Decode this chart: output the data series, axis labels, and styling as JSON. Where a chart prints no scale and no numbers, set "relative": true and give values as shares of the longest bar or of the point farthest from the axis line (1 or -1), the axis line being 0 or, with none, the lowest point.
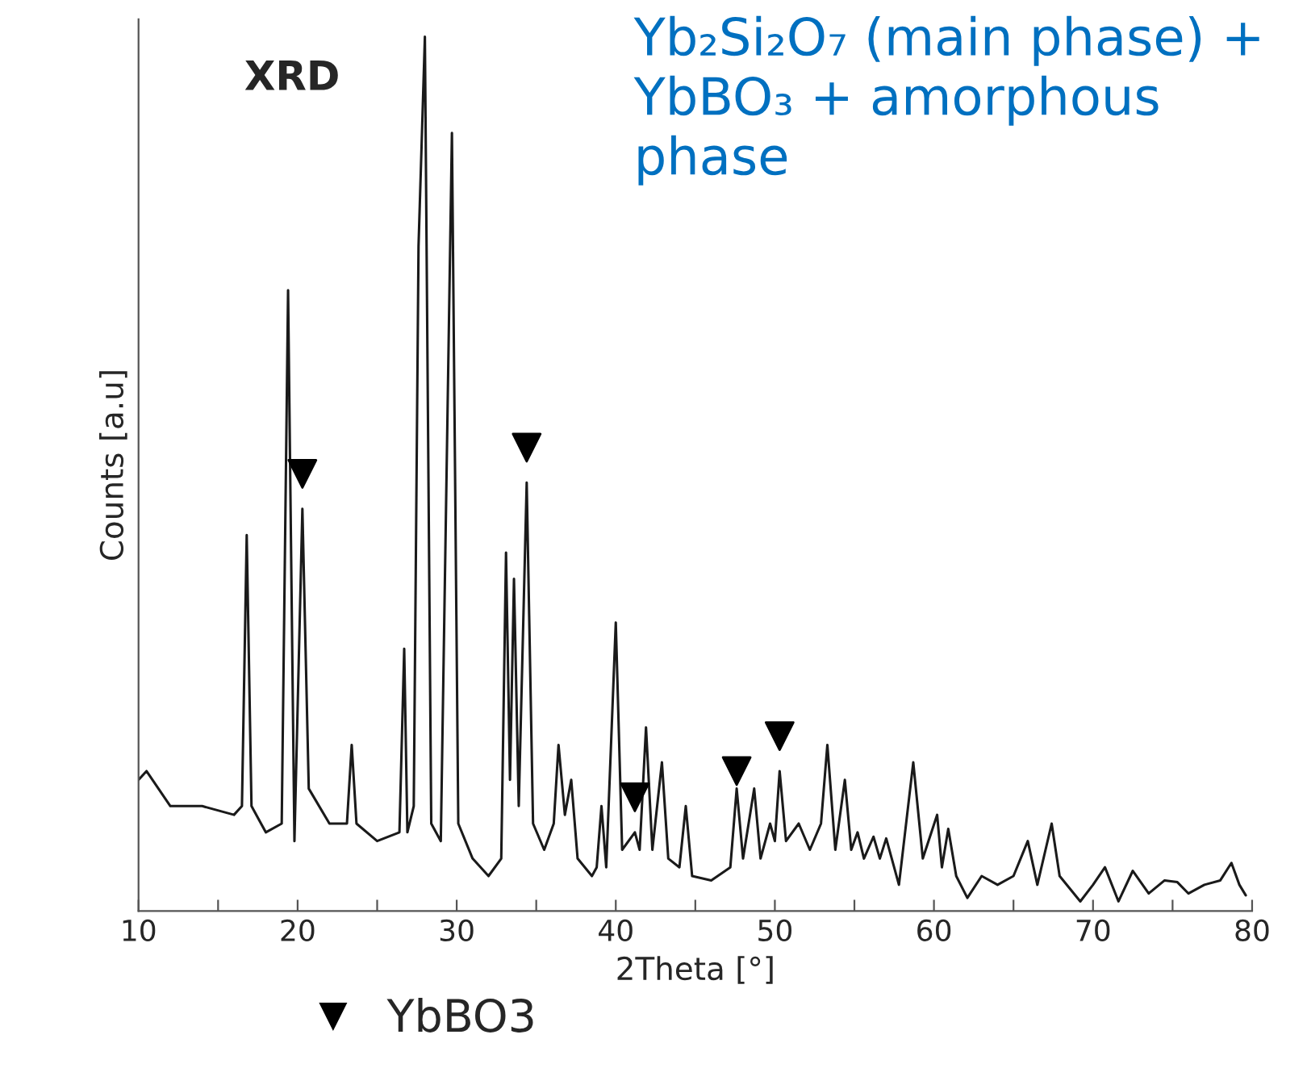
{
  "chart_data": {
    "type": "line",
    "relative": true,
    "xlabel": "2Theta [°]",
    "ylabel": "Counts [a.u]",
    "annotations": [
      "XRD",
      "Yb₂Si₂O₇ (main phase) + YbBO₃ + amorphous phase"
    ],
    "xlim": [
      10,
      80
    ],
    "xticks": [
      10,
      {
        "value": 15,
        "label": null
      },
      20,
      {
        "value": 25,
        "label": null
      },
      30,
      {
        "value": 35,
        "label": null
      },
      40,
      {
        "value": 45,
        "label": null
      },
      50,
      {
        "value": 55,
        "label": null
      },
      60,
      {
        "value": 65,
        "label": null
      },
      70,
      {
        "value": 75,
        "label": null
      },
      80
    ],
    "legend": "bottom left",
    "series": [
      {
        "color": "#1a1a1a",
        "marker": "none",
        "line_style": "solid",
        "x": [
          10.0,
          10.5,
          12,
          14,
          16,
          16.5,
          16.8,
          17.1,
          18,
          19.0,
          19.4,
          19.8,
          20.3,
          20.7,
          22,
          23.1,
          23.4,
          23.7,
          25,
          26.4,
          26.7,
          26.9,
          27.3,
          27.6,
          28.0,
          28.4,
          29.0,
          29.7,
          30.1,
          31,
          32,
          32.8,
          33.1,
          33.35,
          33.6,
          33.9,
          34.4,
          34.8,
          35.5,
          36.1,
          36.4,
          36.8,
          37.2,
          37.6,
          38.5,
          38.8,
          39.1,
          39.4,
          40.0,
          40.4,
          41.2,
          41.5,
          41.9,
          42.3,
          42.9,
          43.3,
          44.0,
          44.4,
          44.8,
          46.0,
          47.2,
          47.6,
          48.0,
          48.7,
          49.1,
          49.7,
          50.0,
          50.3,
          50.7,
          51.5,
          52.2,
          52.9,
          53.3,
          53.8,
          54.4,
          54.8,
          55.2,
          55.6,
          56.2,
          56.6,
          57.0,
          57.8,
          58.7,
          59.3,
          60.2,
          60.5,
          60.9,
          61.4,
          62.1,
          63,
          64,
          65.0,
          65.9,
          66.5,
          67.4,
          67.9,
          69.2,
          70,
          70.75,
          71.6,
          72.5,
          73.5,
          74.5,
          75.3,
          76,
          77,
          78,
          78.7,
          79.2,
          79.6
        ],
        "values": [
          0.15,
          0.16,
          0.12,
          0.12,
          0.11,
          0.12,
          0.43,
          0.12,
          0.09,
          0.1,
          0.71,
          0.08,
          0.46,
          0.14,
          0.1,
          0.1,
          0.19,
          0.1,
          0.08,
          0.09,
          0.3,
          0.09,
          0.12,
          0.76,
          1.0,
          0.1,
          0.08,
          0.89,
          0.1,
          0.06,
          0.04,
          0.06,
          0.41,
          0.15,
          0.38,
          0.12,
          0.49,
          0.1,
          0.07,
          0.1,
          0.19,
          0.11,
          0.15,
          0.06,
          0.04,
          0.05,
          0.12,
          0.05,
          0.33,
          0.07,
          0.09,
          0.07,
          0.21,
          0.07,
          0.17,
          0.06,
          0.05,
          0.12,
          0.04,
          0.035,
          0.05,
          0.14,
          0.06,
          0.14,
          0.06,
          0.1,
          0.08,
          0.16,
          0.08,
          0.1,
          0.07,
          0.1,
          0.19,
          0.07,
          0.15,
          0.07,
          0.09,
          0.06,
          0.085,
          0.06,
          0.083,
          0.03,
          0.17,
          0.06,
          0.11,
          0.05,
          0.094,
          0.04,
          0.015,
          0.04,
          0.03,
          0.04,
          0.08,
          0.03,
          0.1,
          0.04,
          0.011,
          0.03,
          0.05,
          0.011,
          0.046,
          0.02,
          0.035,
          0.033,
          0.02,
          0.03,
          0.035,
          0.055,
          0.03,
          0.018
        ]
      },
      {
        "type": "scatter",
        "name": "YbBO3",
        "color": "#000000",
        "marker": "triangle",
        "x": [
          20.3,
          34.4,
          41.2,
          47.6,
          50.3
        ],
        "values": [
          0.5,
          0.53,
          0.13,
          0.16,
          0.2
        ]
      }
    ]
  }
}
